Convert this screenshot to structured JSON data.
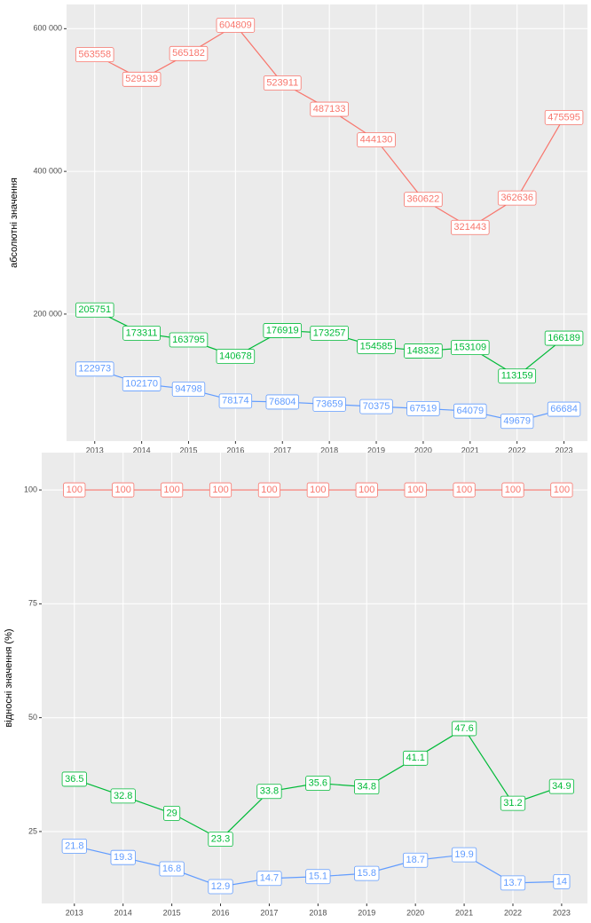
{
  "chart_data": [
    {
      "type": "line",
      "y_label": "абсолютні значення",
      "x": [
        2013,
        2014,
        2015,
        2016,
        2017,
        2018,
        2019,
        2020,
        2021,
        2022,
        2023
      ],
      "xlim": [
        2012.4,
        2023.5
      ],
      "xticks": [
        2013,
        2014,
        2015,
        2016,
        2017,
        2018,
        2019,
        2020,
        2021,
        2022,
        2023
      ],
      "ylim": [
        22000,
        634000
      ],
      "yticks": [
        {
          "value": 200000,
          "label": "200 000"
        },
        {
          "value": 400000,
          "label": "400 000"
        },
        {
          "value": 600000,
          "label": "600 000"
        }
      ],
      "grid": true,
      "series": [
        {
          "color": "#F8766D",
          "values": [
            563558,
            529139,
            565182,
            604809,
            523911,
            487133,
            444130,
            360622,
            321443,
            362636,
            475595
          ]
        },
        {
          "color": "#00BA38",
          "values": [
            205751,
            173311,
            163795,
            140678,
            176919,
            173257,
            154585,
            148332,
            153109,
            113159,
            166189
          ]
        },
        {
          "color": "#619CFF",
          "values": [
            122973,
            102170,
            94798,
            78174,
            76804,
            73659,
            70375,
            67519,
            64079,
            49679,
            66684
          ]
        }
      ]
    },
    {
      "type": "line",
      "y_label": "відносні значення (%)",
      "x": [
        2013,
        2014,
        2015,
        2016,
        2017,
        2018,
        2019,
        2020,
        2021,
        2022,
        2023
      ],
      "xlim": [
        2012.33,
        2023.53
      ],
      "xticks": [
        2013,
        2014,
        2015,
        2016,
        2017,
        2018,
        2019,
        2020,
        2021,
        2022,
        2023
      ],
      "ylim": [
        9.2,
        108.2
      ],
      "yticks": [
        25,
        50,
        75,
        100
      ],
      "grid": true,
      "series": [
        {
          "color": "#F8766D",
          "values": [
            100,
            100,
            100,
            100,
            100,
            100,
            100,
            100,
            100,
            100,
            100
          ]
        },
        {
          "color": "#00BA38",
          "values": [
            36.5,
            32.8,
            29,
            23.3,
            33.8,
            35.6,
            34.8,
            41.1,
            47.6,
            31.2,
            34.9
          ]
        },
        {
          "color": "#619CFF",
          "values": [
            21.8,
            19.3,
            16.8,
            12.9,
            14.7,
            15.1,
            15.8,
            18.7,
            19.9,
            13.7,
            14
          ]
        }
      ]
    }
  ]
}
